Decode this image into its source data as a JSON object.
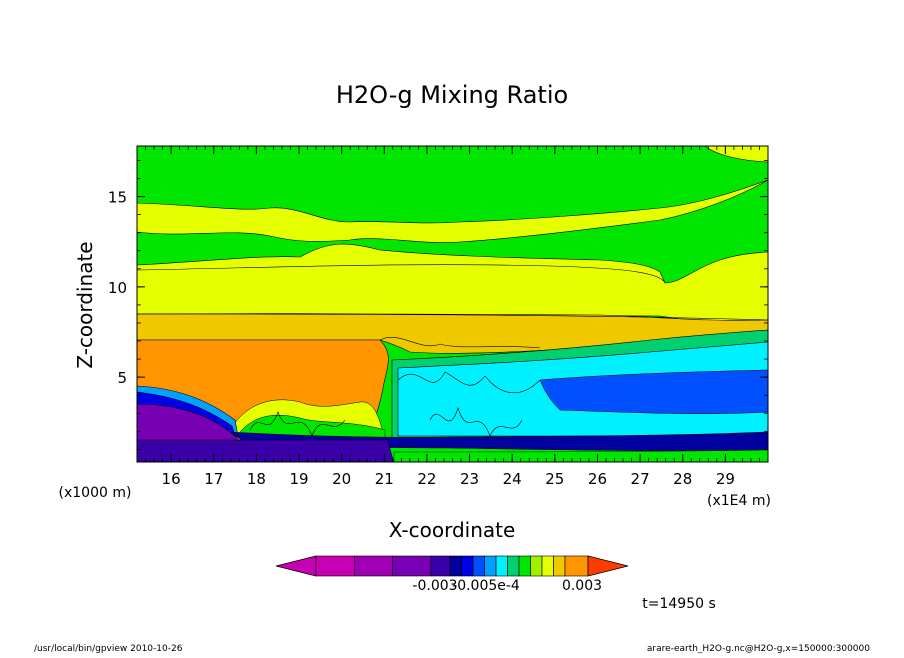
{
  "chart_data": {
    "type": "heatmap",
    "title": "H2O-g Mixing Ratio",
    "xlabel": "X-coordinate",
    "ylabel": "Z-coordinate",
    "x_unit_left": "(x1000 m)",
    "x_unit_right": "(x1E4 m)",
    "xlim": [
      15.2,
      30.0
    ],
    "ylim": [
      0.3,
      17.8
    ],
    "x_ticks": [
      "16",
      "17",
      "18",
      "19",
      "20",
      "21",
      "22",
      "23",
      "24",
      "25",
      "26",
      "27",
      "28",
      "29"
    ],
    "x_tick_values": [
      16,
      17,
      18,
      19,
      20,
      21,
      22,
      23,
      24,
      25,
      26,
      27,
      28,
      29
    ],
    "y_ticks": [
      "5",
      "10",
      "15"
    ],
    "y_tick_values": [
      5,
      10,
      15
    ],
    "colorbar": {
      "colors": [
        "#c800b4",
        "#a000b4",
        "#7800b4",
        "#3a00a8",
        "#0000a0",
        "#0000e6",
        "#0050ff",
        "#00a0ff",
        "#00f0ff",
        "#00d070",
        "#00e600",
        "#a0f000",
        "#e6ff00",
        "#f0c800",
        "#ff9600",
        "#ff3c00"
      ],
      "labels": [
        "-0.003",
        "-0.005e-4",
        "0.003"
      ]
    },
    "time_label": "t=14950 s",
    "footer_left": "/usr/local/bin/gpview  2010-10-26",
    "footer_right": "arare-earth_H2O-g.nc@H2O-g,x=150000:300000"
  }
}
